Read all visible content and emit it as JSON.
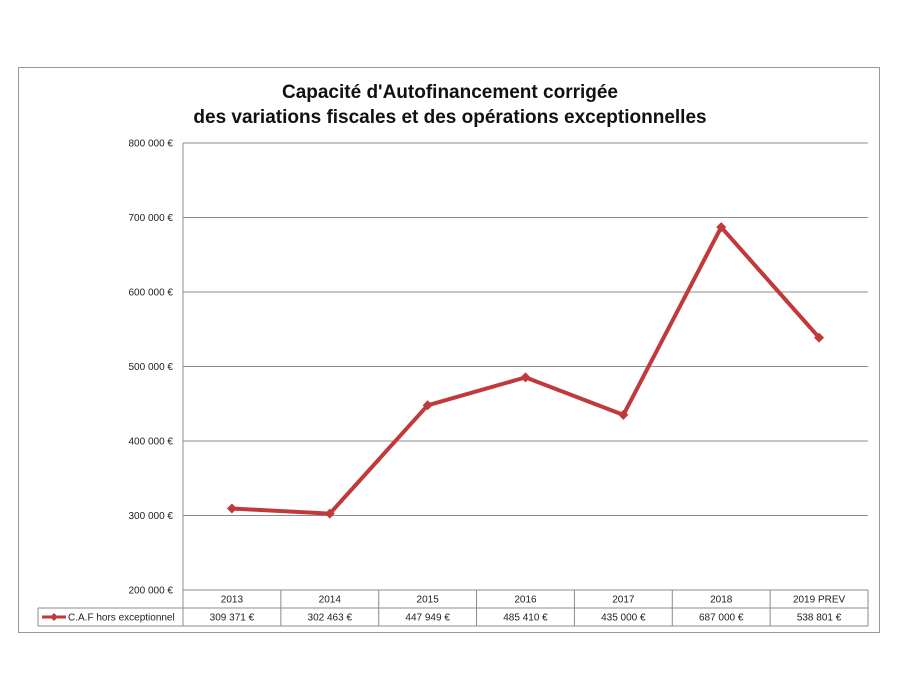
{
  "chart_data": {
    "type": "line",
    "title_line1": "Capacité d'Autofinancement corrigée",
    "title_line2": "des variations fiscales et des opérations exceptionnelles",
    "categories": [
      "2013",
      "2014",
      "2015",
      "2016",
      "2017",
      "2018",
      "2019 PREV"
    ],
    "series": [
      {
        "name": "C.A.F hors exceptionnel",
        "values": [
          309371,
          302463,
          447949,
          485410,
          435000,
          687000,
          538801
        ],
        "labels": [
          "309 371 €",
          "302 463 €",
          "447 949 €",
          "485 410 €",
          "435 000 €",
          "687 000 €",
          "538 801 €"
        ],
        "color": "#c0393b",
        "marker": "diamond"
      }
    ],
    "ylim": [
      200000,
      800000
    ],
    "yticks": [
      200000,
      300000,
      400000,
      500000,
      600000,
      700000,
      800000
    ],
    "ytick_labels": [
      "200 000 €",
      "300 000 €",
      "400 000 €",
      "500 000 €",
      "600 000 €",
      "700 000 €",
      "800 000 €"
    ],
    "grid": true,
    "legend": "data-table"
  }
}
